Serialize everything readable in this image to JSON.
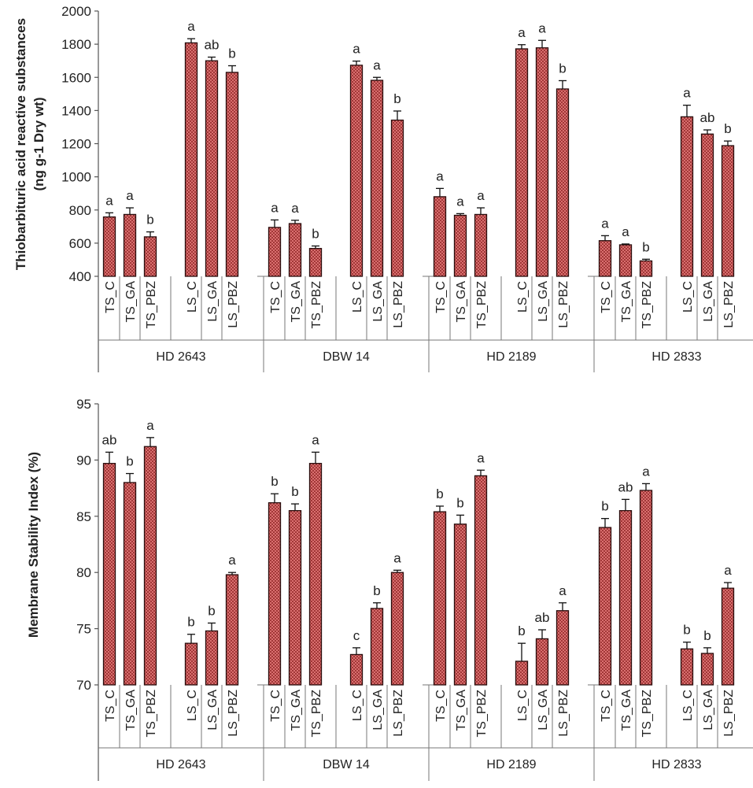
{
  "chart_data": [
    {
      "type": "bar",
      "ylabel_line1": "Thiobarbituric acid reactive substances",
      "ylabel_line2": "(ng g-1 Dry wt)",
      "ylim": [
        400,
        2000
      ],
      "yticks": [
        "2000",
        "1800",
        "1600",
        "1400",
        "1200",
        "1000",
        "800",
        "600",
        "400"
      ],
      "categories": [
        "TS_C",
        "TS_GA",
        "TS_PBZ",
        "LS_C",
        "LS_GA",
        "LS_PBZ"
      ],
      "groups": [
        {
          "name": "HD 2643",
          "values": [
            758,
            773,
            638,
            1808,
            1700,
            1630
          ],
          "errors": [
            25,
            40,
            30,
            25,
            22,
            40
          ],
          "letters": [
            "a",
            "a",
            "b",
            "a",
            "ab",
            "b"
          ]
        },
        {
          "name": "DBW 14",
          "values": [
            695,
            718,
            568,
            1673,
            1582,
            1342
          ],
          "errors": [
            45,
            20,
            15,
            25,
            18,
            55
          ],
          "letters": [
            "a",
            "a",
            "b",
            "a",
            "a",
            "b"
          ]
        },
        {
          "name": "HD 2189",
          "values": [
            880,
            768,
            773,
            1772,
            1778,
            1530
          ],
          "errors": [
            50,
            10,
            40,
            25,
            45,
            50
          ],
          "letters": [
            "a",
            "a",
            "a",
            "a",
            "a",
            "b"
          ]
        },
        {
          "name": "HD 2833",
          "values": [
            615,
            590,
            493,
            1362,
            1258,
            1188
          ],
          "errors": [
            30,
            5,
            10,
            70,
            25,
            28
          ],
          "letters": [
            "a",
            "a",
            "b",
            "a",
            "ab",
            "b"
          ]
        }
      ]
    },
    {
      "type": "bar",
      "ylabel_line1": "Membrane Stability Index (%)",
      "ylim": [
        70,
        95
      ],
      "yticks": [
        "95",
        "90",
        "85",
        "80",
        "75",
        "70"
      ],
      "categories": [
        "TS_C",
        "TS_GA",
        "TS_PBZ",
        "LS_C",
        "LS_GA",
        "LS_PBZ"
      ],
      "groups": [
        {
          "name": "HD 2643",
          "values": [
            89.7,
            88.0,
            91.2,
            73.7,
            74.8,
            79.8
          ],
          "errors": [
            1.0,
            0.8,
            0.8,
            0.8,
            0.7,
            0.2
          ],
          "letters": [
            "ab",
            "b",
            "a",
            "b",
            "b",
            "a"
          ]
        },
        {
          "name": "DBW 14",
          "values": [
            86.2,
            85.5,
            89.7,
            72.7,
            76.8,
            80.0
          ],
          "errors": [
            0.8,
            0.6,
            1.0,
            0.6,
            0.5,
            0.2
          ],
          "letters": [
            "b",
            "b",
            "a",
            "c",
            "b",
            "a"
          ]
        },
        {
          "name": "HD 2189",
          "values": [
            85.4,
            84.3,
            88.6,
            72.1,
            74.1,
            76.6
          ],
          "errors": [
            0.5,
            0.8,
            0.5,
            1.6,
            0.8,
            0.7
          ],
          "letters": [
            "b",
            "b",
            "a",
            "b",
            "ab",
            "a"
          ]
        },
        {
          "name": "HD 2833",
          "values": [
            84.0,
            85.5,
            87.3,
            73.2,
            72.8,
            78.6
          ],
          "errors": [
            0.8,
            1.0,
            0.6,
            0.6,
            0.5,
            0.5
          ],
          "letters": [
            "b",
            "ab",
            "a",
            "b",
            "b",
            "a"
          ]
        }
      ]
    }
  ]
}
